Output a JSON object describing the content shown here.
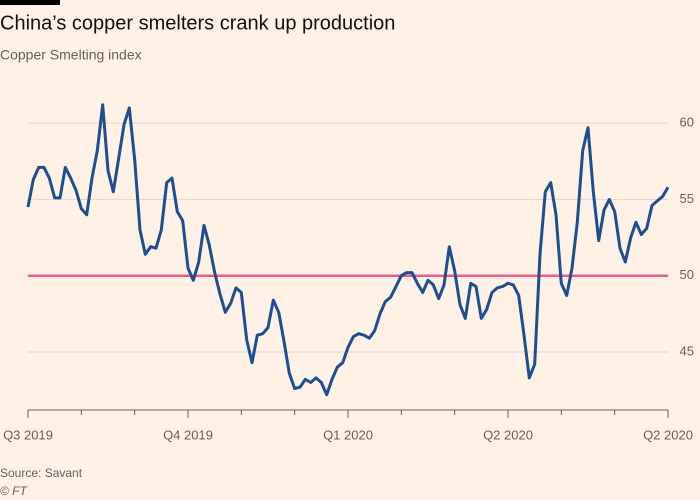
{
  "chart_data": {
    "type": "line",
    "title": "China’s copper smelters crank up production",
    "subtitle": "Copper Smelting index",
    "source": "Source: Savant",
    "credit": "© FT",
    "x": [
      0,
      0.1,
      0.2,
      0.3,
      0.4,
      0.5,
      0.6,
      0.7,
      0.8,
      0.9,
      1,
      1.1,
      1.2,
      1.3,
      1.4,
      1.5,
      1.6,
      1.7,
      1.8,
      1.9,
      2,
      2.1,
      2.2,
      2.3,
      2.4,
      2.5,
      2.6,
      2.7,
      2.8,
      2.9,
      3,
      3.1,
      3.2,
      3.3,
      3.4,
      3.5,
      3.6,
      3.7,
      3.8,
      3.9,
      4,
      4.1,
      4.2,
      4.3,
      4.4,
      4.5,
      4.6,
      4.7,
      4.8,
      4.9,
      5,
      5.1,
      5.2,
      5.3,
      5.4,
      5.5,
      5.6,
      5.7,
      5.8,
      5.9,
      6,
      6.1,
      6.2,
      6.3,
      6.4,
      6.5,
      6.6,
      6.7,
      6.8,
      6.9,
      7,
      7.1,
      7.2,
      7.3,
      7.4,
      7.5,
      7.6,
      7.7,
      7.8,
      7.9,
      8,
      8.1,
      8.2,
      8.3,
      8.4,
      8.5,
      8.6,
      8.7,
      8.8,
      8.9,
      9,
      9.1,
      9.2,
      9.3,
      9.4,
      9.5,
      9.6,
      9.7,
      9.8,
      9.9,
      10,
      10.1,
      10.2,
      10.3,
      10.4,
      10.5,
      10.6,
      10.7,
      10.8,
      10.9,
      11,
      11.1,
      11.2,
      11.3,
      11.4,
      11.5,
      11.6,
      11.7,
      11.8,
      11.9,
      12
    ],
    "series": [
      {
        "color": "#1f4e8c",
        "values": [
          54.5,
          56.3,
          57.1,
          57.1,
          56.4,
          55.1,
          55.1,
          57.1,
          56.4,
          55.6,
          54.4,
          54.0,
          56.4,
          58.2,
          61.2,
          56.9,
          55.5,
          57.7,
          59.9,
          61.0,
          57.6,
          53.0,
          51.4,
          51.9,
          51.8,
          53.0,
          56.1,
          56.4,
          54.2,
          53.6,
          50.5,
          49.7,
          50.9,
          53.3,
          52.0,
          50.2,
          48.8,
          47.6,
          48.2,
          49.2,
          48.9,
          45.8,
          44.3,
          46.1,
          46.2,
          46.6,
          48.4,
          47.6,
          45.7,
          43.6,
          42.6,
          42.7,
          43.2,
          43.0,
          43.3,
          43.0,
          42.2,
          43.2,
          44.0,
          44.3,
          45.3,
          46.0,
          46.2,
          46.1,
          45.9,
          46.4,
          47.5,
          48.3,
          48.6,
          49.3,
          50.0,
          50.2,
          50.2,
          49.5,
          48.9,
          49.7,
          49.4,
          48.5,
          49.4,
          51.9,
          50.3,
          48.1,
          47.2,
          49.5,
          49.3,
          47.2,
          47.8,
          48.9,
          49.2,
          49.3,
          49.5,
          49.4,
          48.7,
          46.1,
          43.3,
          44.2,
          51.4,
          55.5,
          56.1,
          54.0,
          49.5,
          48.7,
          50.5,
          53.5,
          58.2,
          59.7,
          55.5,
          52.3,
          54.3,
          55.0,
          54.2,
          51.8,
          50.9,
          52.5,
          53.5,
          52.7,
          53.1,
          54.6,
          54.9,
          55.2,
          55.8
        ]
      }
    ],
    "xlim": [
      0,
      12
    ],
    "xticks": [
      {
        "value": 0,
        "label": "Q3 2019"
      },
      {
        "value": 3,
        "label": "Q4 2019"
      },
      {
        "value": 6,
        "label": "Q1 2020"
      },
      {
        "value": 9,
        "label": "Q2 2020"
      },
      {
        "value": 12,
        "label": "Q2 2020"
      }
    ],
    "xminorticks": [
      1,
      2,
      4,
      5,
      7,
      8,
      10,
      11
    ],
    "ylim": [
      41,
      62.5
    ],
    "yticks": [
      45,
      50,
      55,
      60
    ],
    "grid": true,
    "reference_line": {
      "value": 50,
      "color": "#e8608a"
    }
  }
}
